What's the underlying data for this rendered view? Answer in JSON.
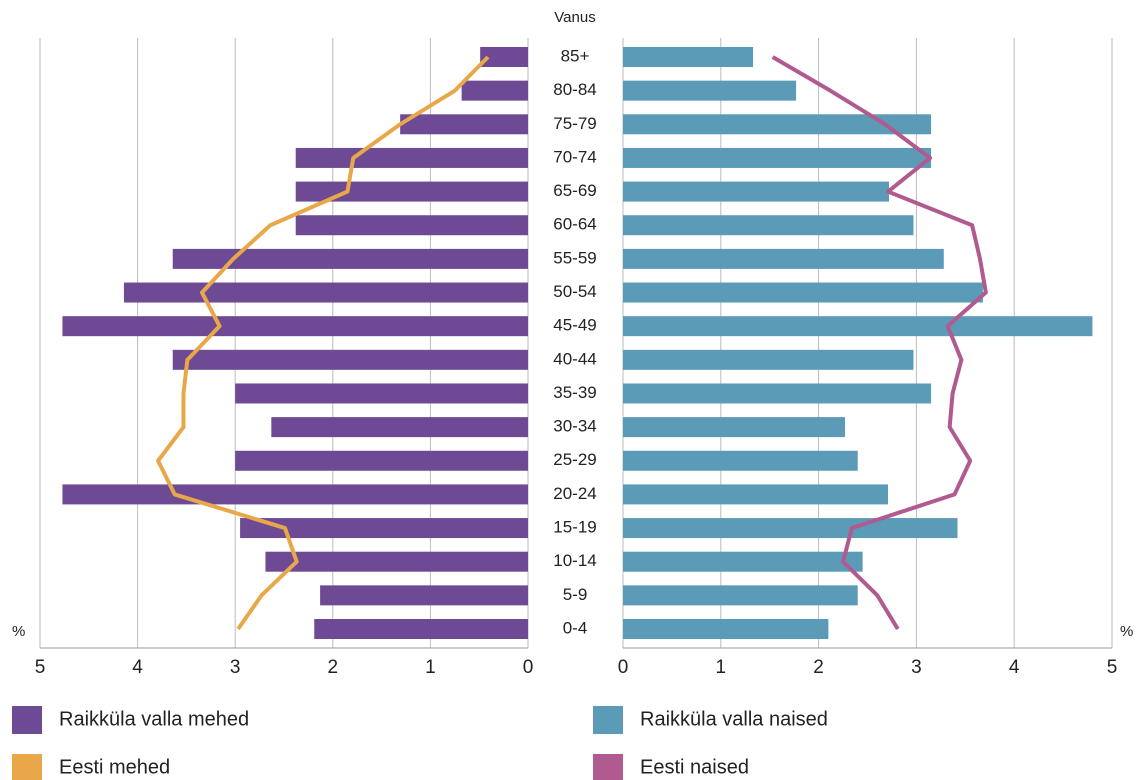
{
  "chart_data": {
    "type": "pyramid",
    "title": "Vanus",
    "categories": [
      "85+",
      "80-84",
      "75-79",
      "70-74",
      "65-69",
      "60-64",
      "55-59",
      "50-54",
      "45-49",
      "40-44",
      "35-39",
      "30-34",
      "25-29",
      "20-24",
      "15-19",
      "10-14",
      "5-9",
      "0-4"
    ],
    "series": [
      {
        "name": "Raikküla valla mehed",
        "color": "#6f4a94",
        "side": "left",
        "kind": "bar",
        "values": [
          0.49,
          0.68,
          1.31,
          2.38,
          2.38,
          2.38,
          3.64,
          4.14,
          4.77,
          3.64,
          3.0,
          2.63,
          3.0,
          4.77,
          2.95,
          2.69,
          2.13,
          2.19
        ]
      },
      {
        "name": "Eesti mehed",
        "color": "#e8a84a",
        "side": "left",
        "kind": "line",
        "values": [
          0.41,
          0.75,
          1.31,
          1.79,
          1.85,
          2.64,
          3.02,
          3.34,
          3.16,
          3.49,
          3.53,
          3.53,
          3.79,
          3.62,
          2.49,
          2.37,
          2.73,
          2.97
        ]
      },
      {
        "name": "Raikküla valla naised",
        "color": "#5b9bb8",
        "side": "right",
        "kind": "bar",
        "values": [
          1.33,
          1.77,
          3.15,
          3.15,
          2.72,
          2.97,
          3.28,
          3.68,
          4.8,
          2.97,
          3.15,
          2.27,
          2.4,
          2.71,
          3.42,
          2.45,
          2.4,
          2.1
        ]
      },
      {
        "name": "Eesti naised",
        "color": "#b05a90",
        "side": "right",
        "kind": "line",
        "values": [
          1.53,
          2.12,
          2.68,
          3.14,
          2.71,
          3.57,
          3.65,
          3.71,
          3.32,
          3.46,
          3.37,
          3.34,
          3.55,
          3.39,
          2.34,
          2.25,
          2.6,
          2.81
        ]
      }
    ],
    "xlim": [
      0,
      5
    ],
    "xticks": [
      0,
      1,
      2,
      3,
      4,
      5
    ],
    "x_unit": "%",
    "grid": true
  }
}
